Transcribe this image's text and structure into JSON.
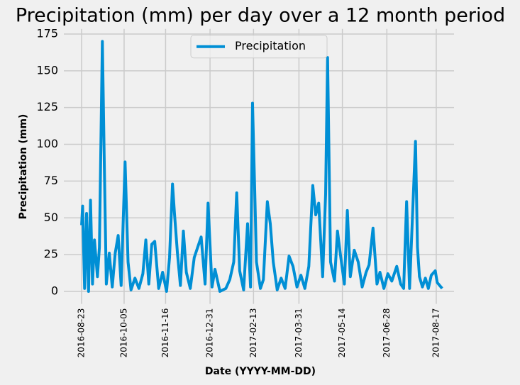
{
  "chart_data": {
    "type": "line",
    "title": "Precipitation (mm) per day over a 12 month period",
    "x_label": "Date (YYYY-MM-DD)",
    "y_label": "Precipitation (mm)",
    "x": [
      "2016-08-23",
      "2016-08-24",
      "2016-08-26",
      "2016-08-28",
      "2016-08-30",
      "2016-09-01",
      "2016-09-03",
      "2016-09-05",
      "2016-09-08",
      "2016-09-10",
      "2016-09-13",
      "2016-09-15",
      "2016-09-17",
      "2016-09-20",
      "2016-09-23",
      "2016-09-26",
      "2016-09-29",
      "2016-10-02",
      "2016-10-06",
      "2016-10-09",
      "2016-10-12",
      "2016-10-16",
      "2016-10-20",
      "2016-10-24",
      "2016-10-27",
      "2016-10-30",
      "2016-11-02",
      "2016-11-05",
      "2016-11-09",
      "2016-11-13",
      "2016-11-17",
      "2016-11-20",
      "2016-11-23",
      "2016-11-25",
      "2016-11-28",
      "2016-12-01",
      "2016-12-04",
      "2016-12-07",
      "2016-12-11",
      "2016-12-15",
      "2016-12-19",
      "2016-12-22",
      "2016-12-26",
      "2016-12-29",
      "2017-01-02",
      "2017-01-05",
      "2017-01-10",
      "2017-01-16",
      "2017-01-20",
      "2017-01-24",
      "2017-01-27",
      "2017-01-30",
      "2017-02-03",
      "2017-02-07",
      "2017-02-10",
      "2017-02-12",
      "2017-02-14",
      "2017-02-16",
      "2017-02-20",
      "2017-02-23",
      "2017-02-27",
      "2017-03-02",
      "2017-03-05",
      "2017-03-09",
      "2017-03-13",
      "2017-03-17",
      "2017-03-21",
      "2017-03-25",
      "2017-03-29",
      "2017-04-02",
      "2017-04-06",
      "2017-04-10",
      "2017-04-14",
      "2017-04-17",
      "2017-04-20",
      "2017-04-24",
      "2017-04-27",
      "2017-04-29",
      "2017-05-02",
      "2017-05-06",
      "2017-05-09",
      "2017-05-12",
      "2017-05-16",
      "2017-05-19",
      "2017-05-22",
      "2017-05-26",
      "2017-05-30",
      "2017-06-03",
      "2017-06-07",
      "2017-06-10",
      "2017-06-14",
      "2017-06-18",
      "2017-06-21",
      "2017-06-25",
      "2017-06-29",
      "2017-07-03",
      "2017-07-08",
      "2017-07-12",
      "2017-07-15",
      "2017-07-18",
      "2017-07-21",
      "2017-07-27",
      "2017-07-29",
      "2017-07-31",
      "2017-08-03",
      "2017-08-06",
      "2017-08-09",
      "2017-08-12",
      "2017-08-16",
      "2017-08-18",
      "2017-08-23"
    ],
    "series": [
      {
        "name": "Precipitation",
        "color": "#008fd5",
        "values": [
          45,
          58,
          2,
          53,
          0,
          62,
          5,
          35,
          10,
          30,
          170,
          85,
          5,
          26,
          3,
          26,
          38,
          4,
          88,
          20,
          1,
          9,
          2,
          12,
          35,
          5,
          32,
          34,
          2,
          13,
          0,
          23,
          73,
          53,
          26,
          4,
          41,
          13,
          2,
          23,
          31,
          37,
          5,
          60,
          3,
          15,
          0,
          2,
          8,
          20,
          67,
          14,
          1,
          46,
          3,
          128,
          75,
          20,
          2,
          8,
          61,
          46,
          20,
          1,
          9,
          2,
          24,
          17,
          3,
          11,
          2,
          17,
          72,
          52,
          60,
          10,
          66,
          159,
          20,
          7,
          41,
          25,
          5,
          55,
          10,
          28,
          20,
          3,
          13,
          18,
          43,
          5,
          13,
          2,
          12,
          7,
          17,
          5,
          2,
          61,
          2,
          102,
          30,
          10,
          3,
          9,
          2,
          11,
          14,
          6,
          2
        ]
      }
    ],
    "xlim": [
      "2016-08-05",
      "2017-09-04"
    ],
    "xticks": [
      "2016-08-23",
      "2016-10-05",
      "2016-11-16",
      "2016-12-31",
      "2017-02-13",
      "2017-03-31",
      "2017-05-14",
      "2017-06-28",
      "2017-08-17"
    ],
    "ylim": [
      -8.5,
      178.5
    ],
    "yticks": [
      0,
      25,
      50,
      75,
      100,
      125,
      150,
      175
    ],
    "grid": true,
    "legend": "upper center"
  }
}
